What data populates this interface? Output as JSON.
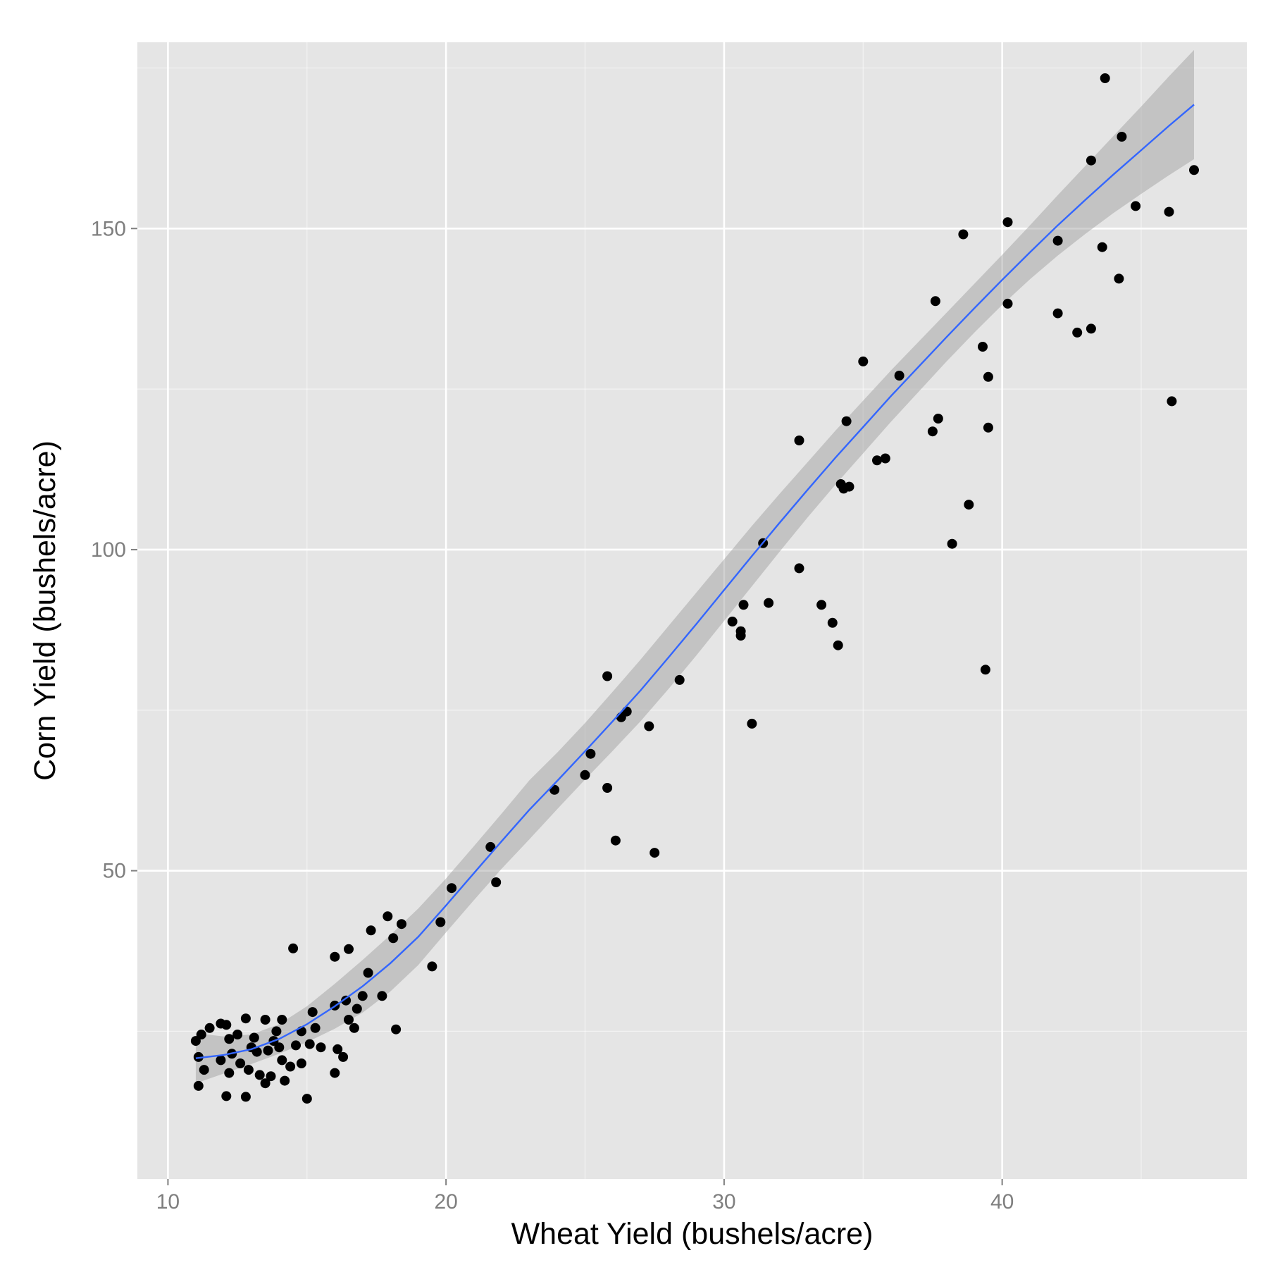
{
  "chart_data": {
    "type": "scatter",
    "xlabel": "Wheat Yield (bushels/acre)",
    "ylabel": "Corn Yield (bushels/acre)",
    "xlim": [
      8.9,
      48.8
    ],
    "ylim": [
      2,
      179
    ],
    "x_ticks": [
      10,
      20,
      30,
      40
    ],
    "x_tick_labels": [
      "10",
      "20",
      "30",
      "40"
    ],
    "y_ticks": [
      50,
      100,
      150
    ],
    "y_tick_labels": [
      "50",
      "100",
      "150"
    ],
    "grid": true,
    "colors": {
      "panel_background": "#e5e5e5",
      "grid": "#ffffff",
      "points": "#000000",
      "smooth_line": "#3366ff",
      "confidence_band": "#999999"
    },
    "series": [
      {
        "type": "points",
        "points": [
          [
            11.0,
            23.5
          ],
          [
            11.1,
            21.0
          ],
          [
            11.1,
            16.5
          ],
          [
            11.2,
            24.5
          ],
          [
            11.3,
            19.0
          ],
          [
            11.5,
            25.5
          ],
          [
            11.9,
            26.2
          ],
          [
            11.9,
            20.5
          ],
          [
            12.1,
            26.0
          ],
          [
            12.2,
            23.8
          ],
          [
            12.1,
            14.9
          ],
          [
            12.2,
            18.5
          ],
          [
            12.3,
            21.5
          ],
          [
            12.5,
            24.5
          ],
          [
            12.6,
            20.0
          ],
          [
            12.8,
            27.0
          ],
          [
            12.8,
            14.8
          ],
          [
            12.9,
            19.0
          ],
          [
            13.0,
            22.5
          ],
          [
            13.1,
            24.0
          ],
          [
            13.2,
            21.8
          ],
          [
            13.3,
            18.2
          ],
          [
            13.5,
            16.9
          ],
          [
            13.5,
            26.8
          ],
          [
            13.6,
            22.0
          ],
          [
            13.7,
            18.0
          ],
          [
            13.8,
            23.5
          ],
          [
            13.9,
            25.0
          ],
          [
            14.0,
            22.5
          ],
          [
            14.1,
            26.8
          ],
          [
            14.1,
            20.5
          ],
          [
            14.2,
            17.3
          ],
          [
            14.4,
            19.5
          ],
          [
            14.5,
            37.9
          ],
          [
            14.6,
            22.8
          ],
          [
            14.8,
            20.0
          ],
          [
            14.8,
            25.0
          ],
          [
            15.0,
            14.5
          ],
          [
            15.1,
            23.0
          ],
          [
            15.2,
            28.0
          ],
          [
            15.3,
            25.5
          ],
          [
            15.5,
            22.5
          ],
          [
            16.0,
            36.6
          ],
          [
            16.0,
            29.0
          ],
          [
            16.0,
            18.5
          ],
          [
            16.1,
            22.2
          ],
          [
            16.3,
            21.0
          ],
          [
            16.4,
            29.8
          ],
          [
            16.5,
            37.8
          ],
          [
            16.5,
            26.8
          ],
          [
            16.7,
            25.5
          ],
          [
            16.8,
            28.5
          ],
          [
            17.0,
            30.5
          ],
          [
            17.2,
            34.1
          ],
          [
            17.3,
            40.7
          ],
          [
            17.7,
            30.5
          ],
          [
            17.9,
            42.9
          ],
          [
            18.1,
            39.5
          ],
          [
            18.2,
            25.3
          ],
          [
            18.4,
            41.7
          ],
          [
            19.5,
            35.1
          ],
          [
            19.8,
            42.0
          ],
          [
            20.2,
            47.3
          ],
          [
            21.6,
            53.7
          ],
          [
            21.8,
            48.2
          ],
          [
            23.9,
            62.6
          ],
          [
            25.0,
            64.9
          ],
          [
            25.2,
            68.2
          ],
          [
            25.8,
            62.9
          ],
          [
            25.8,
            80.3
          ],
          [
            26.1,
            54.7
          ],
          [
            26.3,
            73.9
          ],
          [
            26.5,
            74.8
          ],
          [
            27.3,
            72.5
          ],
          [
            27.5,
            52.8
          ],
          [
            28.4,
            79.7
          ],
          [
            30.3,
            88.8
          ],
          [
            30.6,
            86.6
          ],
          [
            30.6,
            87.3
          ],
          [
            30.7,
            91.4
          ],
          [
            31.0,
            72.9
          ],
          [
            31.4,
            101.0
          ],
          [
            31.6,
            91.7
          ],
          [
            32.7,
            117.0
          ],
          [
            32.7,
            97.1
          ],
          [
            33.5,
            91.4
          ],
          [
            33.9,
            88.6
          ],
          [
            34.1,
            85.1
          ],
          [
            34.2,
            110.2
          ],
          [
            34.3,
            109.5
          ],
          [
            34.4,
            120.0
          ],
          [
            34.5,
            109.8
          ],
          [
            35.0,
            129.3
          ],
          [
            35.5,
            113.9
          ],
          [
            35.8,
            114.2
          ],
          [
            36.3,
            127.1
          ],
          [
            37.5,
            118.4
          ],
          [
            37.6,
            138.7
          ],
          [
            37.7,
            120.4
          ],
          [
            38.2,
            100.9
          ],
          [
            38.6,
            149.1
          ],
          [
            38.8,
            107.0
          ],
          [
            39.3,
            131.6
          ],
          [
            39.4,
            81.3
          ],
          [
            39.5,
            119.0
          ],
          [
            39.5,
            126.9
          ],
          [
            40.2,
            151.0
          ],
          [
            40.2,
            138.3
          ],
          [
            42.0,
            136.8
          ],
          [
            42.0,
            148.1
          ],
          [
            42.7,
            133.8
          ],
          [
            43.2,
            134.4
          ],
          [
            43.2,
            160.6
          ],
          [
            43.6,
            147.1
          ],
          [
            43.7,
            173.4
          ],
          [
            44.2,
            142.2
          ],
          [
            44.3,
            164.3
          ],
          [
            44.8,
            153.5
          ],
          [
            46.0,
            152.6
          ],
          [
            46.1,
            123.1
          ],
          [
            46.9,
            159.1
          ]
        ]
      },
      {
        "type": "smooth",
        "points": [
          [
            11.0,
            20.8
          ],
          [
            12.0,
            21.3
          ],
          [
            13.0,
            22.2
          ],
          [
            14.0,
            23.8
          ],
          [
            15.0,
            26.1
          ],
          [
            16.0,
            28.9
          ],
          [
            17.0,
            32.0
          ],
          [
            18.0,
            35.6
          ],
          [
            19.0,
            39.7
          ],
          [
            20.0,
            44.6
          ],
          [
            21.0,
            49.6
          ],
          [
            22.0,
            54.6
          ],
          [
            23.0,
            59.5
          ],
          [
            24.0,
            64.0
          ],
          [
            25.0,
            68.6
          ],
          [
            26.0,
            73.3
          ],
          [
            27.0,
            78.1
          ],
          [
            28.0,
            83.2
          ],
          [
            29.0,
            88.4
          ],
          [
            30.0,
            93.7
          ],
          [
            31.0,
            99.0
          ],
          [
            32.0,
            104.2
          ],
          [
            33.0,
            109.3
          ],
          [
            34.0,
            114.3
          ],
          [
            35.0,
            119.1
          ],
          [
            36.0,
            123.9
          ],
          [
            37.0,
            128.5
          ],
          [
            38.0,
            133.1
          ],
          [
            39.0,
            137.6
          ],
          [
            40.0,
            142.0
          ],
          [
            41.0,
            146.3
          ],
          [
            42.0,
            150.5
          ],
          [
            43.0,
            154.5
          ],
          [
            44.0,
            158.4
          ],
          [
            45.0,
            162.2
          ],
          [
            46.0,
            166.0
          ],
          [
            46.9,
            169.3
          ]
        ]
      },
      {
        "type": "band",
        "points": [
          [
            11.0,
            16.9,
            24.7
          ],
          [
            12.0,
            18.4,
            24.2
          ],
          [
            13.0,
            19.9,
            24.5
          ],
          [
            14.0,
            21.5,
            26.1
          ],
          [
            15.0,
            23.3,
            28.9
          ],
          [
            16.0,
            25.4,
            32.4
          ],
          [
            17.0,
            27.9,
            36.1
          ],
          [
            18.0,
            31.2,
            40.0
          ],
          [
            19.0,
            35.3,
            44.1
          ],
          [
            20.0,
            40.4,
            48.8
          ],
          [
            21.0,
            45.4,
            53.8
          ],
          [
            22.0,
            50.3,
            58.9
          ],
          [
            23.0,
            54.9,
            64.1
          ],
          [
            24.0,
            59.6,
            68.4
          ],
          [
            25.0,
            64.2,
            73.0
          ],
          [
            26.0,
            68.7,
            77.9
          ],
          [
            27.0,
            73.3,
            82.9
          ],
          [
            28.0,
            78.3,
            88.1
          ],
          [
            29.0,
            83.5,
            93.3
          ],
          [
            30.0,
            88.9,
            98.5
          ],
          [
            31.0,
            94.3,
            103.7
          ],
          [
            32.0,
            99.7,
            108.7
          ],
          [
            33.0,
            105.0,
            113.6
          ],
          [
            34.0,
            110.1,
            118.5
          ],
          [
            35.0,
            115.0,
            123.2
          ],
          [
            36.0,
            119.9,
            127.9
          ],
          [
            37.0,
            124.6,
            132.4
          ],
          [
            38.0,
            129.3,
            136.9
          ],
          [
            39.0,
            133.8,
            141.4
          ],
          [
            40.0,
            138.1,
            145.9
          ],
          [
            41.0,
            142.1,
            150.5
          ],
          [
            42.0,
            145.8,
            155.2
          ],
          [
            43.0,
            149.2,
            159.8
          ],
          [
            44.0,
            152.4,
            164.4
          ],
          [
            45.0,
            155.4,
            169.0
          ],
          [
            46.0,
            158.3,
            173.7
          ],
          [
            46.9,
            160.8,
            177.8
          ]
        ]
      }
    ]
  }
}
